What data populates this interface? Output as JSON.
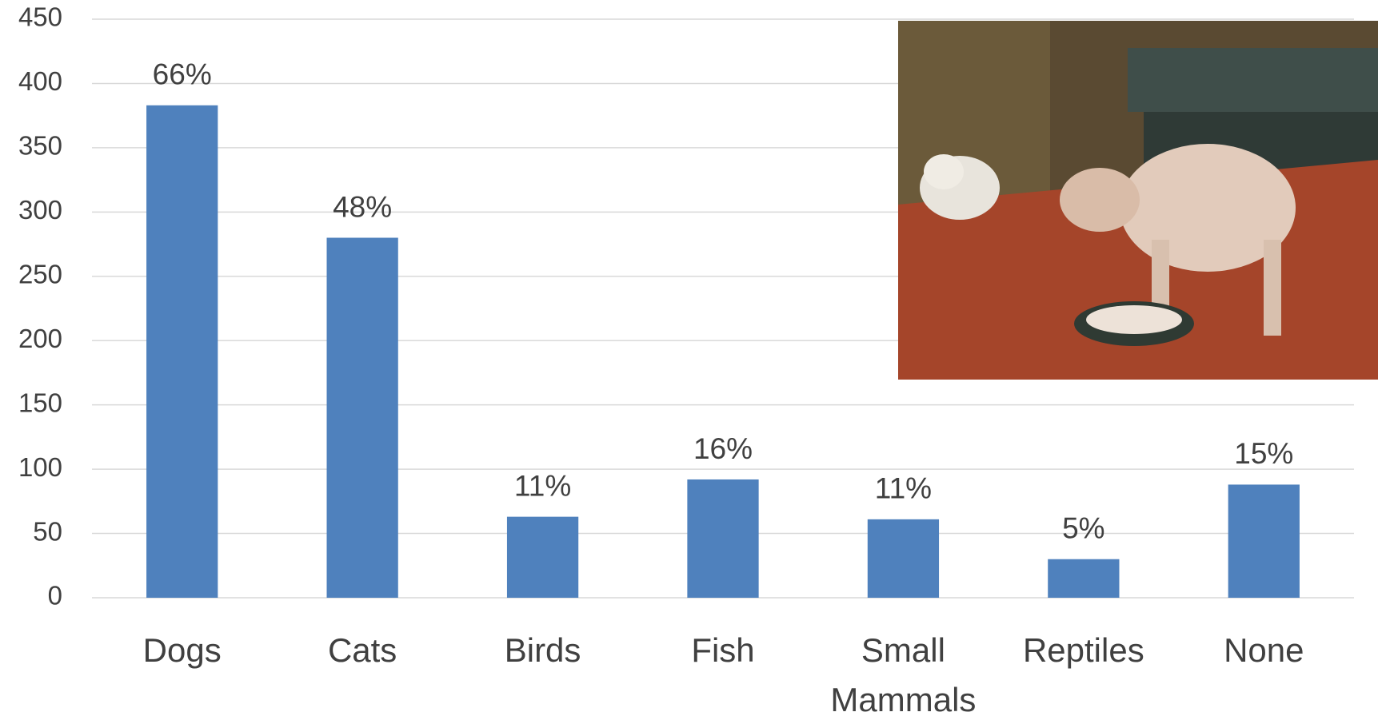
{
  "chart_data": {
    "type": "bar",
    "categories": [
      "Dogs",
      "Cats",
      "Birds",
      "Fish",
      "Small Mammals",
      "Reptiles",
      "None"
    ],
    "values": [
      383,
      280,
      63,
      92,
      61,
      30,
      88
    ],
    "data_labels": [
      "66%",
      "48%",
      "11%",
      "16%",
      "11%",
      "5%",
      "15%"
    ],
    "color": "#4f81bd",
    "ylim": [
      0,
      450
    ],
    "yticks": [
      0,
      50,
      100,
      150,
      200,
      250,
      300,
      350,
      400,
      450
    ],
    "grid": true
  }
}
